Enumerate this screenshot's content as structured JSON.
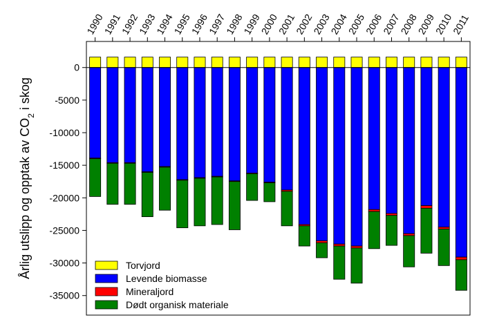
{
  "chart_data": {
    "type": "bar",
    "stacked": true,
    "title": "",
    "xlabel": "",
    "ylabel_main": "Årlig utslipp og opptak av CO",
    "ylabel_sub": "2",
    "ylabel_tail": " i skog",
    "ylim": [
      -38000,
      4000
    ],
    "yticks": [
      0,
      -5000,
      -10000,
      -15000,
      -20000,
      -25000,
      -30000,
      -35000
    ],
    "ytick_labels": [
      "0",
      "-5000",
      "-10000",
      "-15000",
      "-20000",
      "-25000",
      "-30000",
      "-35000"
    ],
    "x_axis_position": "top",
    "grid": false,
    "legend_position": "bottom-left",
    "categories": [
      "1990",
      "1991",
      "1992",
      "1993",
      "1994",
      "1995",
      "1996",
      "1997",
      "1998",
      "1999",
      "2000",
      "2001",
      "2002",
      "2003",
      "2004",
      "2005",
      "2006",
      "2007",
      "2008",
      "2009",
      "2010",
      "2011"
    ],
    "series": [
      {
        "name": "Torvjord",
        "color": "#ffff00",
        "values": [
          1600,
          1600,
          1600,
          1600,
          1600,
          1600,
          1600,
          1600,
          1600,
          1600,
          1600,
          1600,
          1600,
          1600,
          1600,
          1600,
          1600,
          1600,
          1600,
          1600,
          1600,
          1600
        ]
      },
      {
        "name": "Levende biomasse",
        "color": "#0000ff",
        "values": [
          -13900,
          -14600,
          -14600,
          -16000,
          -15200,
          -17200,
          -16900,
          -16700,
          -17400,
          -16200,
          -17600,
          -18800,
          -24100,
          -26600,
          -27100,
          -27400,
          -21800,
          -22400,
          -25500,
          -21200,
          -24500,
          -29100
        ]
      },
      {
        "name": "Mineraljord",
        "color": "#ff0000",
        "values": [
          -100,
          -100,
          -100,
          -100,
          -100,
          -100,
          -100,
          -100,
          -100,
          -100,
          -100,
          -200,
          -200,
          -300,
          -300,
          -300,
          -300,
          -300,
          -300,
          -400,
          -300,
          -400
        ]
      },
      {
        "name": "Dødt organisk materiale",
        "color": "#008000",
        "values": [
          -5800,
          -6300,
          -6300,
          -6800,
          -6600,
          -7300,
          -7300,
          -7300,
          -7400,
          -4100,
          -2900,
          -5300,
          -3100,
          -2300,
          -5100,
          -5400,
          -5700,
          -4600,
          -4800,
          -6900,
          -5600,
          -4700
        ]
      }
    ]
  }
}
